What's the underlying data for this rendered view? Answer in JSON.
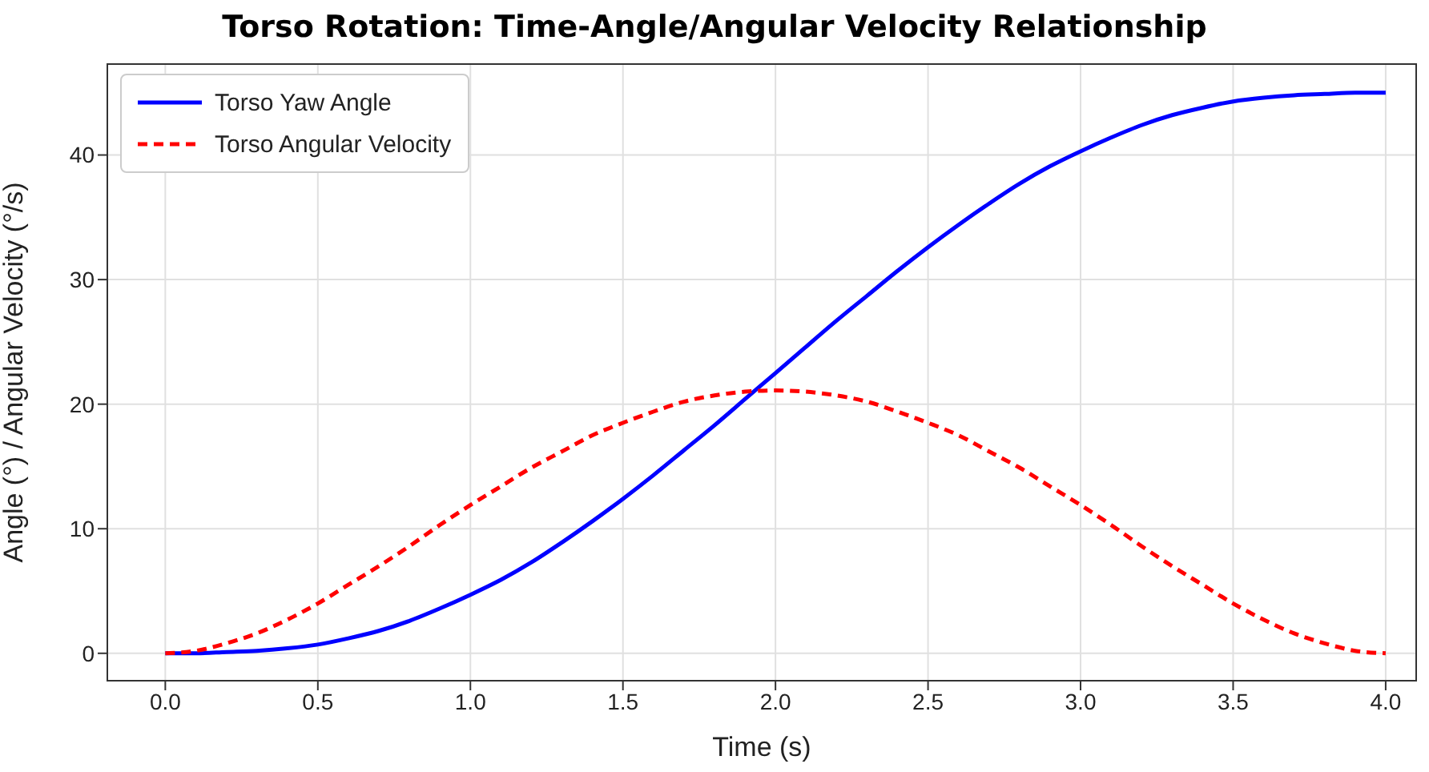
{
  "chart_data": {
    "type": "line",
    "title": "Torso Rotation: Time-Angle/Angular Velocity Relationship",
    "xlabel": "Time (s)",
    "ylabel": "Angle (°) / Angular Velocity (°/s)",
    "x": [
      0,
      0.1,
      0.2,
      0.3,
      0.4,
      0.5,
      0.6,
      0.7,
      0.8,
      0.9,
      1.0,
      1.1,
      1.2,
      1.3,
      1.4,
      1.5,
      1.6,
      1.7,
      1.8,
      1.9,
      2.0,
      2.1,
      2.2,
      2.3,
      2.4,
      2.5,
      2.6,
      2.7,
      2.8,
      2.9,
      3.0,
      3.1,
      3.2,
      3.3,
      3.4,
      3.5,
      3.6,
      3.7,
      3.8,
      3.9,
      4.0
    ],
    "series": [
      {
        "name": "Torso Yaw Angle",
        "color": "#0000ff",
        "line_style": "solid",
        "values": [
          0,
          0,
          0.1,
          0.2,
          0.4,
          0.7,
          1.2,
          1.8,
          2.6,
          3.6,
          4.7,
          5.9,
          7.3,
          8.9,
          10.6,
          12.4,
          14.3,
          16.3,
          18.3,
          20.4,
          22.5,
          24.6,
          26.7,
          28.7,
          30.7,
          32.6,
          34.4,
          36.1,
          37.7,
          39.1,
          40.3,
          41.4,
          42.4,
          43.2,
          43.8,
          44.3,
          44.6,
          44.8,
          44.9,
          45.0,
          45.0
        ]
      },
      {
        "name": "Torso Angular Velocity",
        "color": "#ff0000",
        "line_style": "dashed",
        "values": [
          0,
          0.2,
          0.8,
          1.6,
          2.7,
          4.0,
          5.5,
          7.0,
          8.6,
          10.3,
          11.9,
          13.4,
          14.9,
          16.2,
          17.5,
          18.5,
          19.4,
          20.2,
          20.7,
          21.0,
          21.1,
          21.0,
          20.7,
          20.2,
          19.4,
          18.5,
          17.5,
          16.2,
          14.9,
          13.4,
          11.9,
          10.3,
          8.6,
          7.0,
          5.5,
          4.0,
          2.7,
          1.6,
          0.8,
          0.2,
          0
        ]
      }
    ],
    "xlim": [
      -0.19,
      4.1
    ],
    "xticks": [
      {
        "value": 0,
        "label": "0.0"
      },
      0.5,
      {
        "value": 1,
        "label": "1.0"
      },
      1.5,
      {
        "value": 2,
        "label": "2.0"
      },
      2.5,
      {
        "value": 3,
        "label": "3.0"
      },
      3.5,
      {
        "value": 4,
        "label": "4.0"
      }
    ],
    "ylim": [
      -2.2,
      47.3
    ],
    "yticks": [
      0,
      10,
      20,
      30,
      40
    ],
    "grid": true,
    "legend": "top left",
    "marker": "none"
  }
}
